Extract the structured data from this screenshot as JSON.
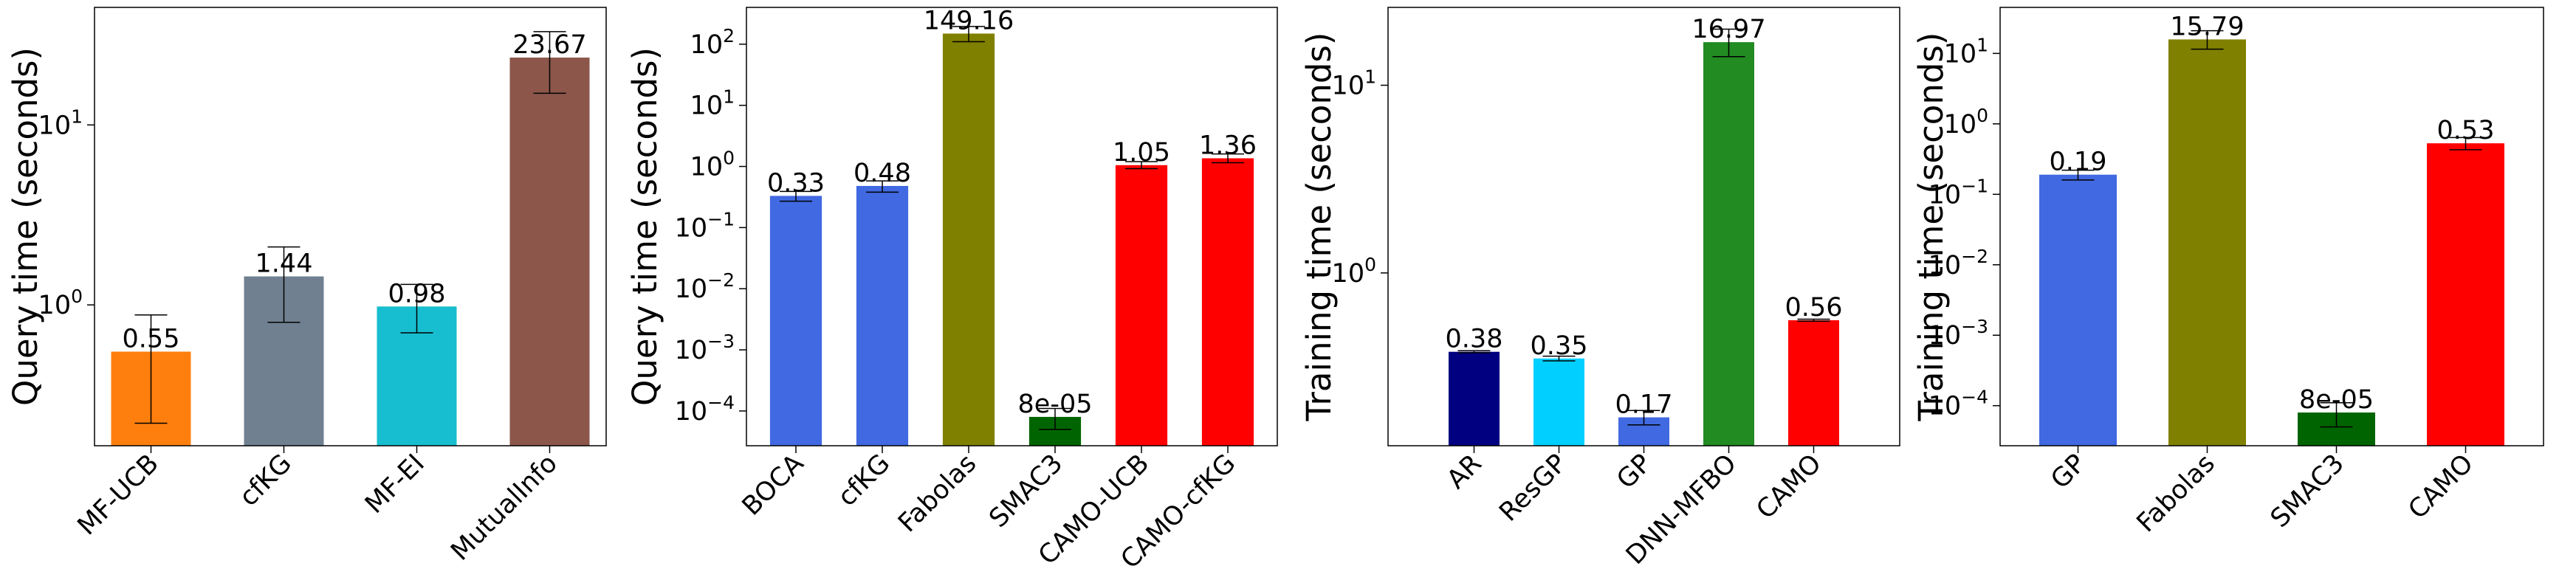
{
  "chart_data": [
    {
      "type": "bar",
      "ylabel": "Query time (seconds)",
      "yscale": "log",
      "ylim": [
        0.165,
        45
      ],
      "yticks": [
        {
          "value": 1,
          "label": "10^0"
        },
        {
          "value": 10,
          "label": "10^1"
        }
      ],
      "categories": [
        "MF-UCB",
        "cfKG",
        "MF-EI",
        "MutualInfo"
      ],
      "values": [
        0.55,
        1.44,
        0.98,
        23.67
      ],
      "value_labels": [
        "0.55",
        "1.44",
        "0.98",
        "23.67"
      ],
      "error_low": [
        0.22,
        0.8,
        0.7,
        15.0
      ],
      "error_high": [
        0.88,
        2.1,
        1.3,
        33.0
      ],
      "colors": [
        "#ff7f0e",
        "#708090",
        "#17becf",
        "#8c564b"
      ]
    },
    {
      "type": "bar",
      "ylabel": "Query time (seconds)",
      "yscale": "log",
      "ylim": [
        2.7e-05,
        400
      ],
      "yticks": [
        {
          "value": 0.0001,
          "label": "10^-4"
        },
        {
          "value": 0.001,
          "label": "10^-3"
        },
        {
          "value": 0.01,
          "label": "10^-2"
        },
        {
          "value": 0.1,
          "label": "10^-1"
        },
        {
          "value": 1,
          "label": "10^0"
        },
        {
          "value": 10,
          "label": "10^1"
        },
        {
          "value": 100,
          "label": "10^2"
        }
      ],
      "categories": [
        "BOCA",
        "cfKG",
        "Fabolas",
        "SMAC3",
        "CAMO-UCB",
        "CAMO-cfKG"
      ],
      "values": [
        0.33,
        0.48,
        149.16,
        8e-05,
        1.05,
        1.36
      ],
      "value_labels": [
        "0.33",
        "0.48",
        "149.16",
        "8e-05",
        "1.05",
        "1.36"
      ],
      "error_low": [
        0.27,
        0.38,
        110,
        5e-05,
        0.92,
        1.15
      ],
      "error_high": [
        0.39,
        0.58,
        195,
        0.00011,
        1.2,
        1.6
      ],
      "colors": [
        "#4169e1",
        "#4169e1",
        "#808000",
        "#006400",
        "#ff0000",
        "#ff0000"
      ]
    },
    {
      "type": "bar",
      "ylabel": "Training time (seconds)",
      "yscale": "log",
      "ylim": [
        0.12,
        26
      ],
      "yticks": [
        {
          "value": 1,
          "label": "10^0"
        },
        {
          "value": 10,
          "label": "10^1"
        }
      ],
      "categories": [
        "AR",
        "ResGP",
        "GP",
        "DNN-MFBO",
        "CAMO"
      ],
      "values": [
        0.38,
        0.35,
        0.17,
        16.97,
        0.56
      ],
      "value_labels": [
        "0.38",
        "0.35",
        "0.17",
        "16.97",
        "0.56"
      ],
      "error_low": [
        0.375,
        0.34,
        0.155,
        14.2,
        0.553
      ],
      "error_high": [
        0.385,
        0.36,
        0.185,
        19.9,
        0.567
      ],
      "colors": [
        "#000080",
        "#00cfff",
        "#4169e1",
        "#228b22",
        "#ff0000"
      ]
    },
    {
      "type": "bar",
      "ylabel": "Training time (seconds)",
      "yscale": "log",
      "ylim": [
        2.7e-05,
        45
      ],
      "yticks": [
        {
          "value": 0.0001,
          "label": "10^-4"
        },
        {
          "value": 0.001,
          "label": "10^-3"
        },
        {
          "value": 0.01,
          "label": "10^-2"
        },
        {
          "value": 0.1,
          "label": "10^-1"
        },
        {
          "value": 1,
          "label": "10^0"
        },
        {
          "value": 10,
          "label": "10^1"
        }
      ],
      "categories": [
        "GP",
        "Fabolas",
        "SMAC3",
        "CAMO"
      ],
      "values": [
        0.19,
        15.79,
        8e-05,
        0.53
      ],
      "value_labels": [
        "0.19",
        "15.79",
        "8e-05",
        "0.53"
      ],
      "error_low": [
        0.16,
        11.5,
        5e-05,
        0.43
      ],
      "error_high": [
        0.22,
        21.0,
        0.00011,
        0.64
      ],
      "colors": [
        "#4169e1",
        "#808000",
        "#006400",
        "#ff0000"
      ]
    }
  ]
}
